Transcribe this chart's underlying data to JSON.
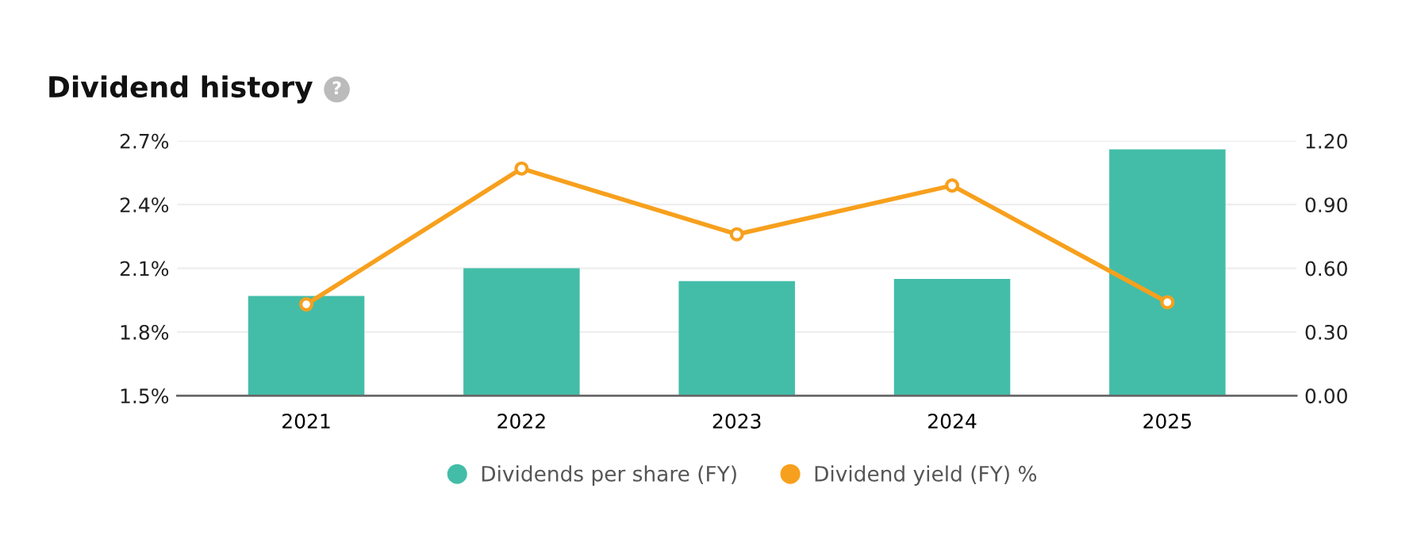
{
  "chart_data": {
    "type": "bar",
    "title": "Dividend history",
    "annotations": [
      "?"
    ],
    "categories": [
      "2021",
      "2022",
      "2023",
      "2024",
      "2025"
    ],
    "series": [
      {
        "name": "Dividends per share (FY)",
        "axis": "y2",
        "color": "#43bda8",
        "values": [
          0.47,
          0.6,
          0.54,
          0.55,
          1.16
        ]
      },
      {
        "name": "Dividend yield (FY) %",
        "type": "line",
        "axis": "y",
        "color": "#f7a01d",
        "marker": "circle",
        "values": [
          1.93,
          2.57,
          2.26,
          2.49,
          1.94
        ]
      }
    ],
    "ylim": [
      1.5,
      2.7
    ],
    "yticks": [
      {
        "value": 1.5,
        "label": "1.5%"
      },
      {
        "value": 1.8,
        "label": "1.8%"
      },
      {
        "value": 2.1,
        "label": "2.1%"
      },
      {
        "value": 2.4,
        "label": "2.4%"
      },
      {
        "value": 2.7,
        "label": "2.7%"
      }
    ],
    "y2lim": [
      0,
      1.2
    ],
    "y2ticks": [
      {
        "value": 0,
        "label": "0.00"
      },
      {
        "value": 0.3,
        "label": "0.30"
      },
      {
        "value": 0.6,
        "label": "0.60"
      },
      {
        "value": 0.9,
        "label": "0.90"
      },
      {
        "value": 1.2,
        "label": "1.20"
      }
    ],
    "grid": "y",
    "legend": "bottom"
  }
}
